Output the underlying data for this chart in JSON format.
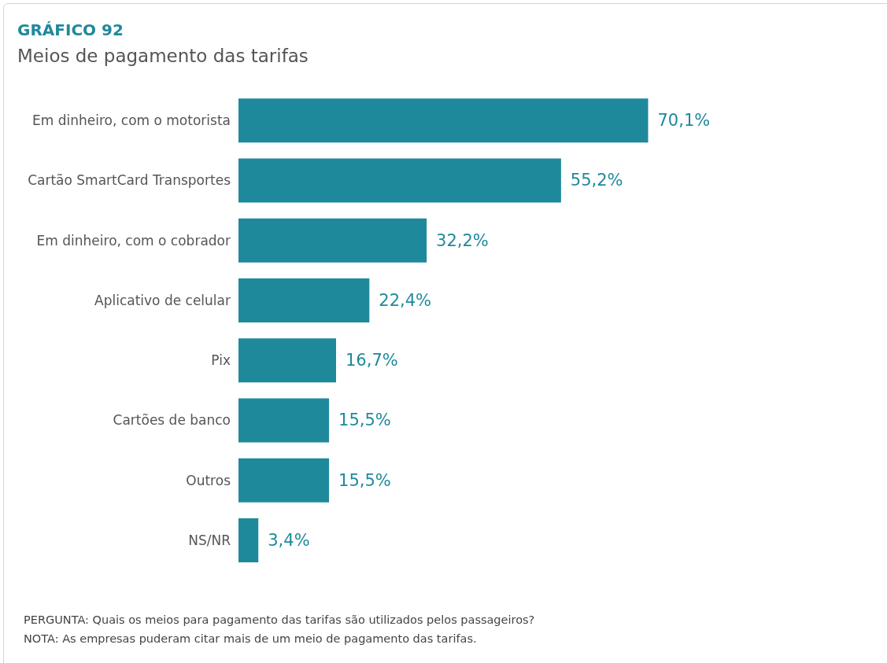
{
  "chart_data": {
    "type": "bar",
    "orientation": "horizontal",
    "title": "GRÁFICO 92",
    "subtitle": "Meios de pagamento das tarifas",
    "categories": [
      "Em dinheiro, com o motorista",
      "Cartão SmartCard Transportes",
      "Em dinheiro, com o cobrador",
      "Aplicativo de celular",
      "Pix",
      "Cartões de banco",
      "Outros",
      "NS/NR"
    ],
    "values": [
      70.1,
      55.2,
      32.2,
      22.4,
      16.7,
      15.5,
      15.5,
      3.4
    ],
    "value_labels": [
      "70,1%",
      "55,2%",
      "32,2%",
      "22,4%",
      "16,7%",
      "15,5%",
      "15,5%",
      "3,4%"
    ],
    "annotations": [
      "PERGUNTA: Quais os meios para pagamento das tarifas são utilizados pelos passageiros?",
      "NOTA: As empresas puderam citar mais de um meio de pagamento das tarifas."
    ],
    "color": "#1f899c"
  }
}
